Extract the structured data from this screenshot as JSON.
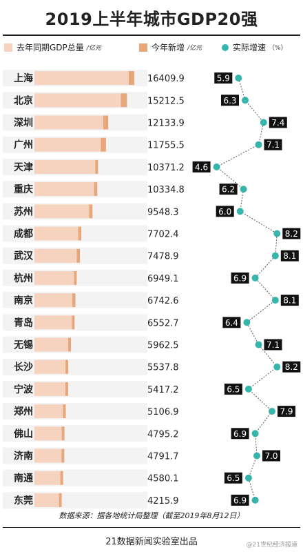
{
  "title": "2019上半年城市GDP20强",
  "legend": {
    "base_label": "去年同期GDP总量",
    "base_unit": "/亿元",
    "increase_label": "今年新增",
    "increase_unit": "/亿元",
    "growth_label": "实际增速",
    "growth_unit": "（%）"
  },
  "colors": {
    "base_bar": "#f5d3bf",
    "increase_bar": "#e8a77a",
    "growth_dot": "#36b5ad",
    "label_box": "#111111"
  },
  "source_text": "数据来源：据各地统计局整理（截至2019年8月12日）",
  "credit_text": "21数据新闻实验室出品",
  "watermark_text": "@21世纪经济报道",
  "chart_data": {
    "type": "bar",
    "categories": [
      "上海",
      "北京",
      "深圳",
      "广州",
      "天津",
      "重庆",
      "苏州",
      "成都",
      "武汉",
      "杭州",
      "南京",
      "青岛",
      "无锡",
      "长沙",
      "宁波",
      "郑州",
      "佛山",
      "济南",
      "南通",
      "东莞"
    ],
    "gdp_2019h1": [
      "16409.9",
      "15212.5",
      "12133.9",
      "11755.5",
      "10371.2",
      "10334.8",
      "9548.3",
      "7702.4",
      "7478.9",
      "6949.1",
      "6742.6",
      "6552.7",
      "5962.5",
      "5537.8",
      "5417.2",
      "5106.9",
      "4795.2",
      "4791.7",
      "4580.1",
      "4215.9"
    ],
    "growth_rate": [
      "5.9",
      "6.3",
      "7.4",
      "7.1",
      "4.6",
      "6.2",
      "6.0",
      "8.2",
      "8.1",
      "6.9",
      "8.1",
      "6.4",
      "7.1",
      "8.2",
      "6.5",
      "7.9",
      "6.9",
      "7.0",
      "6.5",
      "6.9"
    ],
    "series": [
      {
        "name": "去年同期GDP总量",
        "values": [
          15500,
          14200,
          11300,
          10900,
          10000,
          9800,
          9000,
          7200,
          6950,
          6500,
          6230,
          6150,
          5550,
          5100,
          5080,
          4700,
          4480,
          4450,
          4250,
          4030
        ]
      },
      {
        "name": "今年新增",
        "values": [
          909.9,
          1012.5,
          833.9,
          855.5,
          371.2,
          534.8,
          548.3,
          502.4,
          528.9,
          449.1,
          512.6,
          402.7,
          412.5,
          437.8,
          337.2,
          406.9,
          315.2,
          341.7,
          330.1,
          185.9
        ]
      },
      {
        "name": "实际增速",
        "values": [
          5.9,
          6.3,
          7.4,
          7.1,
          4.6,
          6.2,
          6.0,
          8.2,
          8.1,
          6.9,
          8.1,
          6.4,
          7.1,
          8.2,
          6.5,
          7.9,
          6.9,
          7.0,
          6.5,
          6.9
        ]
      }
    ],
    "growth_xlim": [
      4.0,
      8.6
    ]
  }
}
